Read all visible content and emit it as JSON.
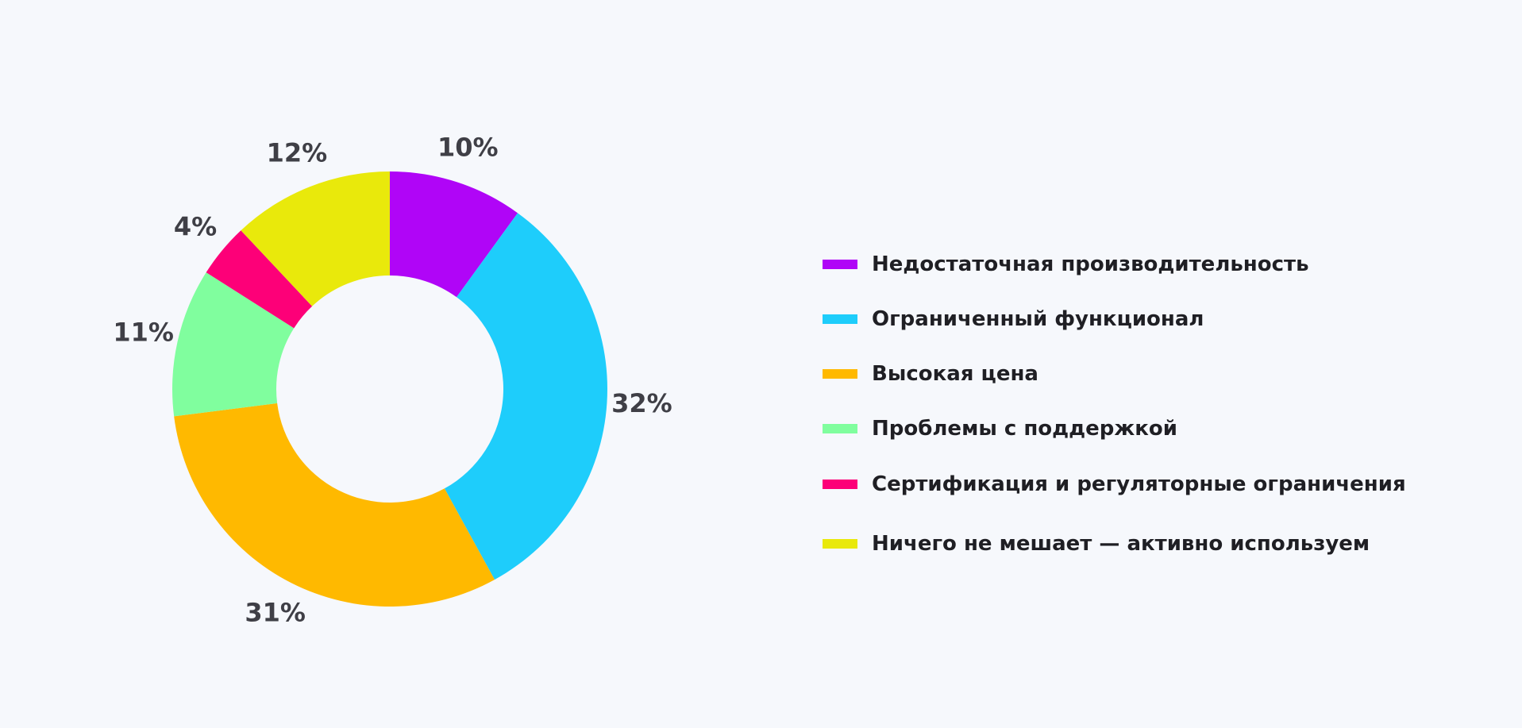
{
  "chart_data": {
    "type": "pie",
    "donut": true,
    "categories": [
      "Недостаточная производительность",
      "Ограниченный функционал",
      "Высокая цена",
      "Проблемы с поддержкой",
      "Сертификация и регуляторные ограничения",
      "Ничего не мешает — активно используем"
    ],
    "values": [
      10,
      32,
      31,
      11,
      4,
      12
    ],
    "value_labels": [
      "10%",
      "32%",
      "31%",
      "11%",
      "4%",
      "12%"
    ],
    "colors": [
      "#b005f7",
      "#1ecdfb",
      "#ffb900",
      "#80fe9e",
      "#fd0078",
      "#e9e90b"
    ],
    "unit": "%",
    "legend_position": "right"
  }
}
